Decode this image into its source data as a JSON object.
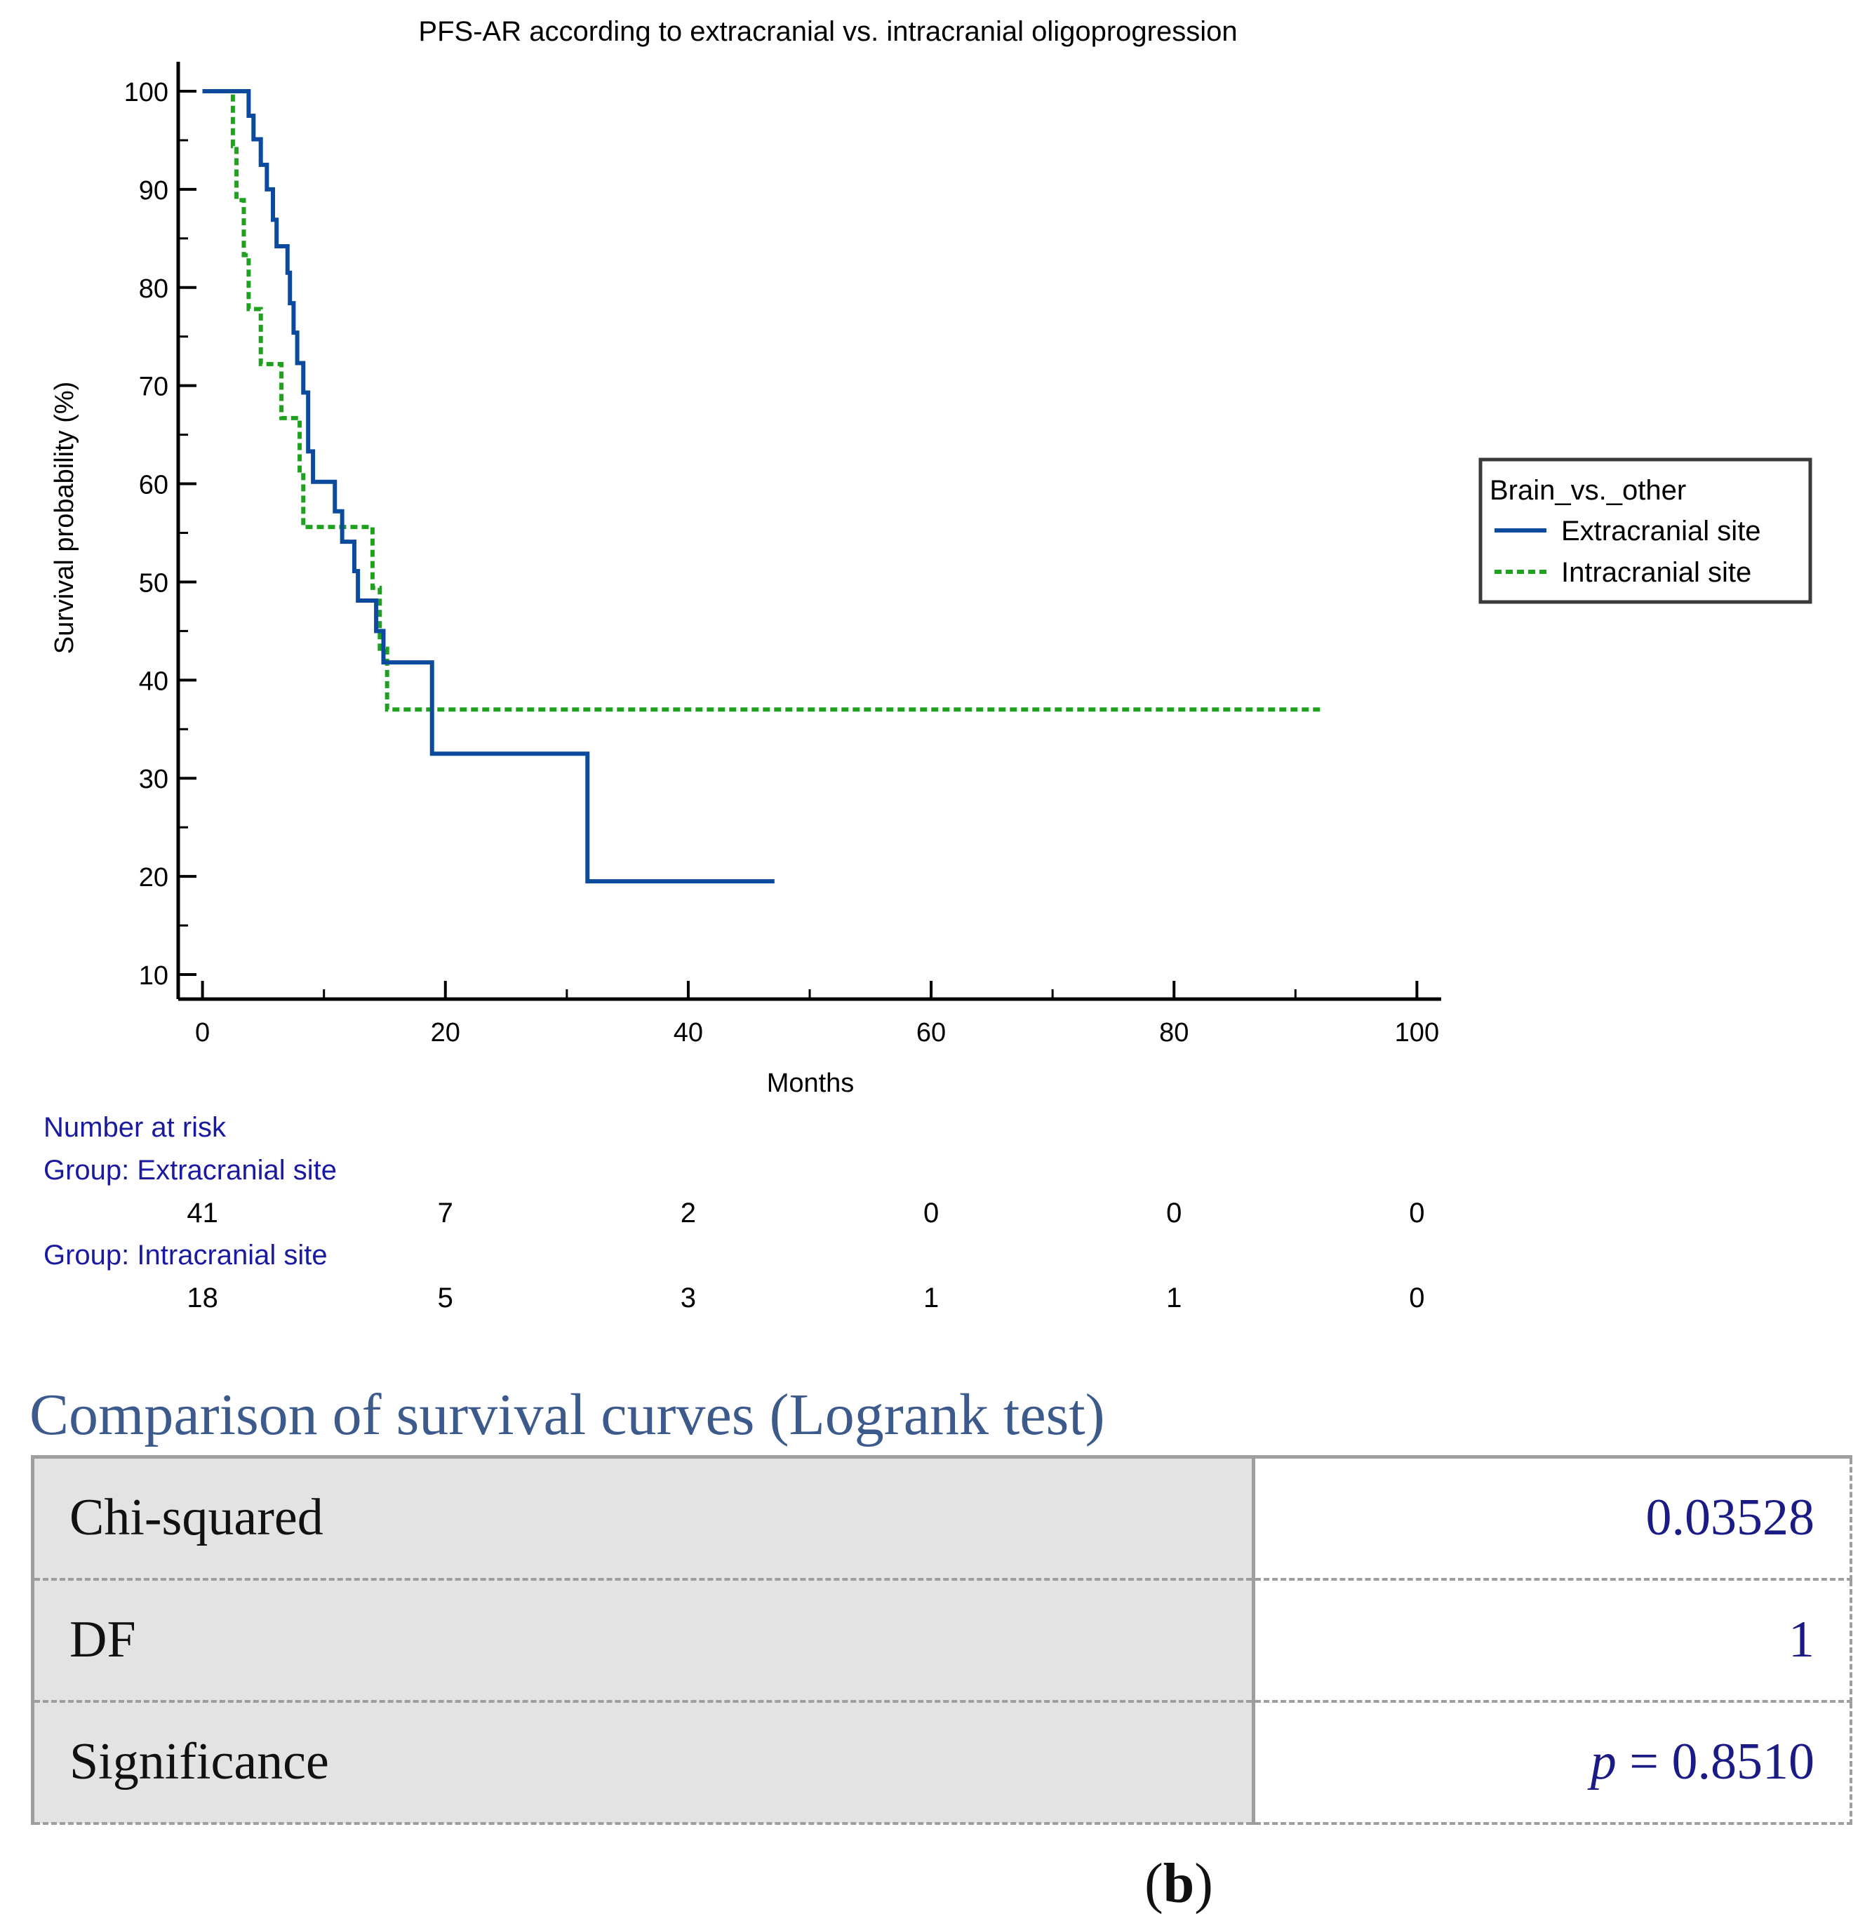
{
  "chart_data": {
    "type": "line",
    "subtype": "kaplan-meier step",
    "title": "PFS-AR according to extracranial vs. intracranial oligoprogression",
    "xlabel": "Months",
    "ylabel": "Survival probability (%)",
    "xlim": [
      -2,
      102
    ],
    "ylim": [
      7.5,
      103
    ],
    "xticks": [
      0,
      20,
      40,
      60,
      80,
      100
    ],
    "xtick_labels": [
      "0",
      "20",
      "40",
      "60",
      "80",
      "100"
    ],
    "x_minor_ticks": [
      10,
      30,
      50,
      70,
      90
    ],
    "yticks": [
      10,
      20,
      30,
      40,
      50,
      60,
      70,
      80,
      90,
      100
    ],
    "ytick_labels": [
      "10",
      "20",
      "30",
      "40",
      "50",
      "60",
      "70",
      "80",
      "90",
      "100"
    ],
    "y_minor_ticks": [
      15,
      25,
      35,
      45,
      55,
      65,
      75,
      85,
      95
    ],
    "grid": false,
    "legend": {
      "title": "Brain_vs._other",
      "position": "right",
      "entries": [
        "Extracranial site",
        "Intracranial site"
      ]
    },
    "series": [
      {
        "name": "Extracranial site",
        "color": "#0b4a9c",
        "style": "solid",
        "x": [
          0,
          3.8,
          4.2,
          4.8,
          5.3,
          5.8,
          6.1,
          7.0,
          7.2,
          7.5,
          7.8,
          8.3,
          8.7,
          9.1,
          10.9,
          11.5,
          12.5,
          12.8,
          14.3,
          14.9,
          18.9,
          31.7,
          47.1
        ],
        "y": [
          100,
          97.5,
          95.1,
          92.5,
          90,
          86.9,
          84.2,
          81.5,
          78.4,
          75.4,
          72.3,
          69.3,
          63.3,
          60.2,
          57.2,
          54.1,
          51.1,
          48.1,
          45.0,
          41.8,
          32.5,
          19.5,
          19.5
        ]
      },
      {
        "name": "Intracranial site",
        "color": "#1fa01f",
        "style": "dashed",
        "x": [
          0,
          2.5,
          2.8,
          3.4,
          3.8,
          4.8,
          6.5,
          8.0,
          8.3,
          14.0,
          14.6,
          15.2,
          92.2
        ],
        "y": [
          100,
          94.4,
          88.9,
          83.3,
          77.8,
          72.2,
          66.7,
          61.1,
          55.6,
          49.4,
          43.2,
          37.0,
          37.0
        ]
      }
    ],
    "risk_table": {
      "heading": "Number at risk",
      "time_points": [
        0,
        20,
        40,
        60,
        80,
        100
      ],
      "groups": [
        {
          "label": "Group: Extracranial site",
          "counts": [
            "41",
            "7",
            "2",
            "0",
            "0",
            "0"
          ]
        },
        {
          "label": "Group: Intracranial site",
          "counts": [
            "18",
            "5",
            "3",
            "1",
            "1",
            "0"
          ]
        }
      ]
    }
  },
  "logrank": {
    "title": "Comparison of survival curves (Logrank test)",
    "rows": [
      {
        "label": "Chi-squared",
        "value": "0.03528"
      },
      {
        "label": "DF",
        "value": "1"
      },
      {
        "label": "Significance",
        "p_symbol": "p",
        "value": "= 0.8510"
      }
    ]
  },
  "panel": {
    "open": "(",
    "letter": "b",
    "close": ")"
  },
  "colors": {
    "axis": "#000000",
    "risk_text": "#1a1aa0",
    "table_header": "#3c5a8c",
    "table_value": "#1b1b86"
  }
}
